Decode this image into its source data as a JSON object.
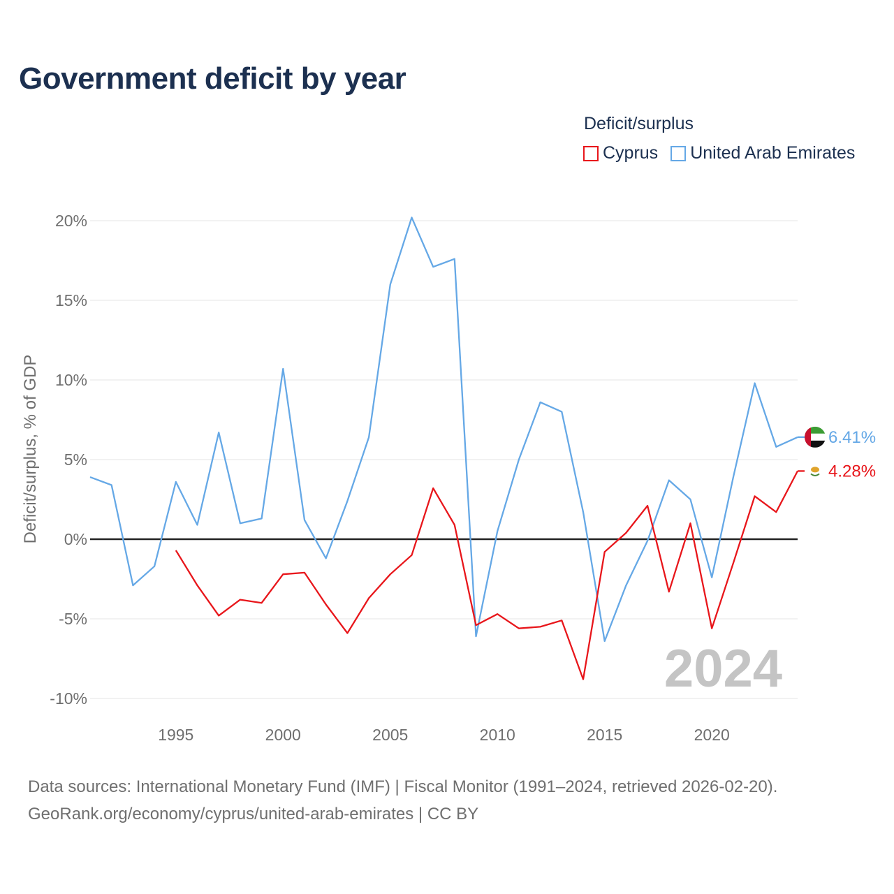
{
  "title": "Government deficit by year",
  "legend": {
    "title": "Deficit/surplus",
    "items": [
      {
        "label": "Cyprus",
        "color": "#e8161b"
      },
      {
        "label": "United Arab Emirates",
        "color": "#65a8e6"
      }
    ]
  },
  "footer": {
    "line1": "Data sources: International Monetary Fund (IMF) | Fiscal Monitor (1991–2024, retrieved 2026-02-20).",
    "line2": "GeoRank.org/economy/cyprus/united-arab-emirates | CC BY"
  },
  "chart_data": {
    "type": "line",
    "title": "Government deficit by year",
    "xlabel": "",
    "ylabel": "Deficit/surplus, % of GDP",
    "xlim": [
      1991,
      2024
    ],
    "ylim": [
      -10,
      20
    ],
    "yticks": [
      -10,
      -5,
      0,
      5,
      10,
      15,
      20
    ],
    "ytick_labels": [
      "-10%",
      "-5%",
      "0%",
      "5%",
      "10%",
      "15%",
      "20%"
    ],
    "xticks": [
      1995,
      2000,
      2005,
      2010,
      2015,
      2020
    ],
    "xtick_labels": [
      "1995",
      "2000",
      "2005",
      "2010",
      "2015",
      "2020"
    ],
    "watermark_year": "2024",
    "series": [
      {
        "name": "United Arab Emirates",
        "color": "#65a8e6",
        "end_label": "6.41%",
        "x": [
          1991,
          1992,
          1993,
          1994,
          1995,
          1996,
          1997,
          1998,
          1999,
          2000,
          2001,
          2002,
          2003,
          2004,
          2005,
          2006,
          2007,
          2008,
          2009,
          2010,
          2011,
          2012,
          2013,
          2014,
          2015,
          2016,
          2017,
          2018,
          2019,
          2020,
          2021,
          2022,
          2023,
          2024
        ],
        "values": [
          3.9,
          3.4,
          -2.9,
          -1.7,
          3.6,
          0.9,
          6.7,
          1.0,
          1.3,
          10.7,
          1.2,
          -1.2,
          2.4,
          6.4,
          16.0,
          20.2,
          17.1,
          17.6,
          -6.1,
          0.5,
          5.0,
          8.6,
          8.0,
          1.7,
          -6.4,
          -2.9,
          -0.1,
          3.7,
          2.5,
          -2.4,
          3.9,
          9.8,
          5.8,
          6.41
        ]
      },
      {
        "name": "Cyprus",
        "color": "#e8161b",
        "end_label": "4.28%",
        "x": [
          1995,
          1996,
          1997,
          1998,
          1999,
          2000,
          2001,
          2002,
          2003,
          2004,
          2005,
          2006,
          2007,
          2008,
          2009,
          2010,
          2011,
          2012,
          2013,
          2014,
          2015,
          2016,
          2017,
          2018,
          2019,
          2020,
          2021,
          2022,
          2023,
          2024
        ],
        "values": [
          -0.7,
          -2.9,
          -4.8,
          -3.8,
          -4.0,
          -2.2,
          -2.1,
          -4.1,
          -5.9,
          -3.7,
          -2.2,
          -1.0,
          3.2,
          0.9,
          -5.4,
          -4.7,
          -5.6,
          -5.5,
          -5.1,
          -8.8,
          -0.8,
          0.4,
          2.1,
          -3.3,
          1.0,
          -5.6,
          -1.5,
          2.7,
          1.7,
          4.28
        ]
      }
    ]
  }
}
